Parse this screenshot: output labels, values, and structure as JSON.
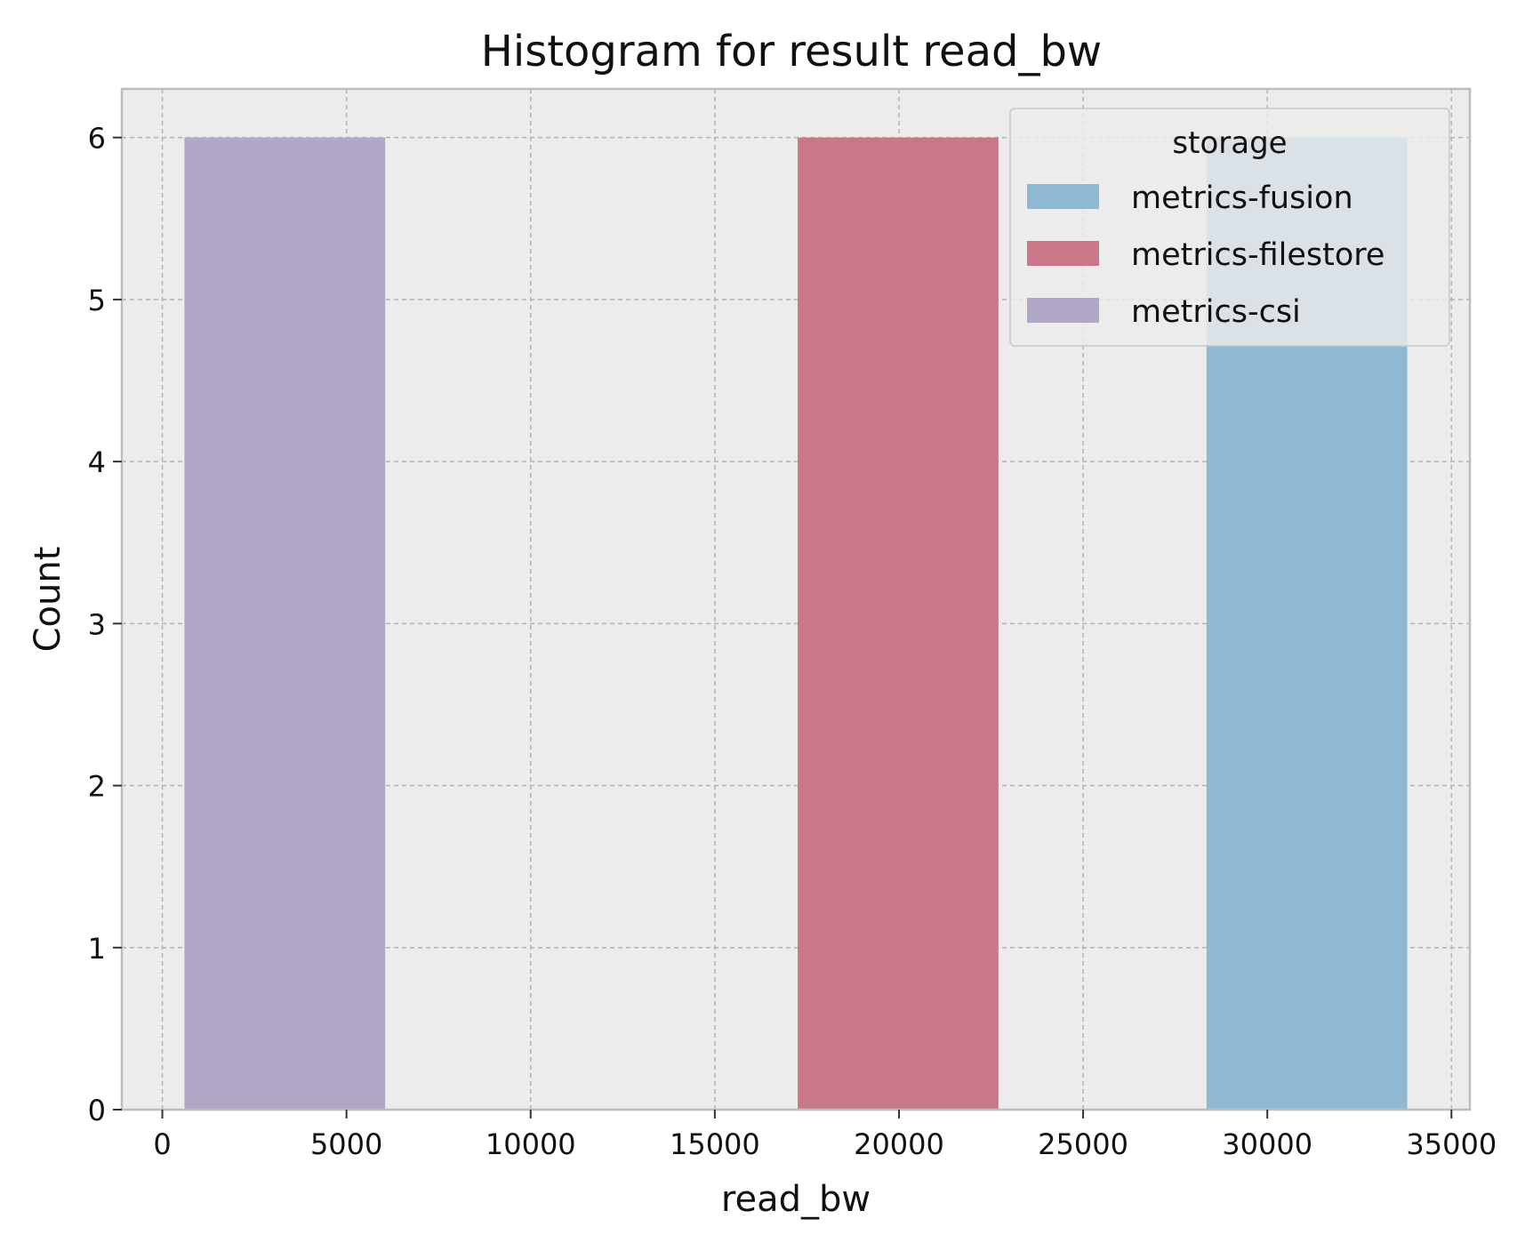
{
  "chart_data": {
    "type": "bar",
    "title": "Histogram for result read_bw",
    "xlabel": "read_bw",
    "ylabel": "Count",
    "xlim": [
      -1100,
      35500
    ],
    "ylim": [
      0,
      6.3
    ],
    "xticks": [
      0,
      5000,
      10000,
      15000,
      20000,
      25000,
      30000,
      35000
    ],
    "yticks": [
      0,
      1,
      2,
      3,
      4,
      5,
      6
    ],
    "grid": true,
    "legend": {
      "title": "storage",
      "placement": "top-right"
    },
    "series": [
      {
        "name": "metrics-fusion",
        "color": "#8fb9d3",
        "bins": [
          {
            "x0": 28350,
            "x1": 33800,
            "count": 6
          }
        ]
      },
      {
        "name": "metrics-filestore",
        "color": "#c87889",
        "bins": [
          {
            "x0": 17250,
            "x1": 22700,
            "count": 6
          }
        ]
      },
      {
        "name": "metrics-csi",
        "color": "#b1a8c8",
        "bins": [
          {
            "x0": 600,
            "x1": 6050,
            "count": 6
          }
        ]
      }
    ]
  }
}
